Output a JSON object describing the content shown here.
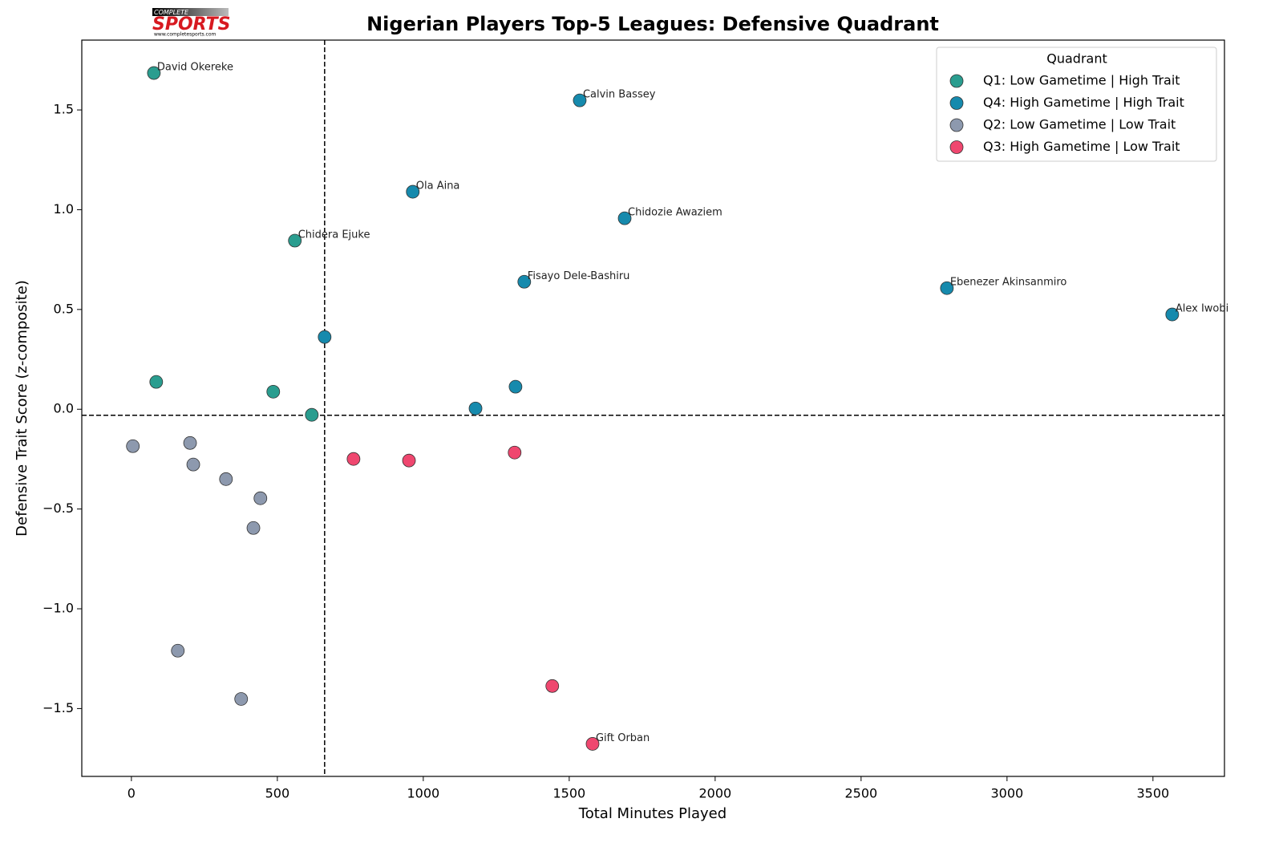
{
  "logo": {
    "top": "COMPLETE",
    "main": "SPORTS",
    "url": "www.completesports.com"
  },
  "chart_data": {
    "type": "scatter",
    "title": "Nigerian Players Top-5 Leagues: Defensive Quadrant",
    "x_label": "Total Minutes Played",
    "y_label": "Defensive Trait Score (z-composite)",
    "xlim": [
      -170,
      3745
    ],
    "ylim": [
      -1.84,
      1.85
    ],
    "xticks": [
      0,
      500,
      1000,
      1500,
      2000,
      2500,
      3000,
      3500
    ],
    "yticks": [
      {
        "value": -1.5,
        "label": "−1.5"
      },
      {
        "value": -1.0,
        "label": "−1.0"
      },
      {
        "value": -0.5,
        "label": "−0.5"
      },
      {
        "value": 0,
        "label": "0.0"
      },
      0.5,
      {
        "value": 1.0,
        "label": "1.0"
      },
      1.5
    ],
    "vline": 662,
    "hline": -0.03,
    "legend_title": "Quadrant",
    "legend": "upper right",
    "series": [
      {
        "name": "Q1: Low Gametime | High Trait",
        "color": "#2a9d8f",
        "x": [
          77,
          560,
          85,
          486,
          618
        ],
        "values": [
          1.685,
          0.845,
          0.137,
          0.088,
          -0.028
        ],
        "labels": [
          "David Okereke",
          "Chidera Ejuke",
          null,
          null,
          null
        ]
      },
      {
        "name": "Q4: High Gametime | High Trait",
        "color": "#168aad",
        "x": [
          1536,
          964,
          1690,
          1346,
          2794,
          3566,
          662,
          1316,
          1179
        ],
        "values": [
          1.548,
          1.09,
          0.957,
          0.639,
          0.607,
          0.475,
          0.362,
          0.113,
          0.004
        ],
        "labels": [
          "Calvin Bassey",
          "Ola Aina",
          "Chidozie Awaziem",
          "Fisayo Dele-Bashiru",
          "Ebenezer Akinsanmiro",
          "Alex Iwobi",
          null,
          null,
          null
        ]
      },
      {
        "name": "Q2: Low Gametime | Low Trait",
        "color": "#8d99ae",
        "x": [
          5,
          201,
          212,
          324,
          442,
          418,
          159,
          376
        ],
        "values": [
          -0.185,
          -0.169,
          -0.277,
          -0.35,
          -0.446,
          -0.595,
          -1.21,
          -1.452
        ],
        "labels": [
          null,
          null,
          null,
          null,
          null,
          null,
          null,
          null
        ]
      },
      {
        "name": "Q3: High Gametime | Low Trait",
        "color": "#ef476f",
        "x": [
          761,
          951,
          1313,
          1442,
          1580
        ],
        "values": [
          -0.249,
          -0.257,
          -0.217,
          -1.387,
          -1.677
        ],
        "labels": [
          null,
          null,
          null,
          null,
          "Gift Orban"
        ]
      }
    ]
  }
}
